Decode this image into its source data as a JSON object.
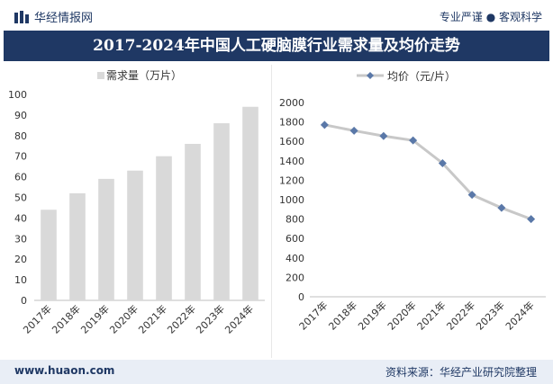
{
  "header": {
    "brand": "华经情报网",
    "slogan": "专业严谨 ● 客观科学"
  },
  "title": "2017-2024年中国人工硬脑膜行业需求量及均价走势",
  "footer": {
    "website": "www.huaon.com",
    "source": "资料来源：华经产业研究院整理"
  },
  "colors": {
    "navy": "#1f3864",
    "bar": "#d9d9d9",
    "line": "#c8c8c8",
    "marker": "#5a78a8"
  },
  "chart_data": [
    {
      "type": "bar",
      "legend": "需求量（万片）",
      "categories": [
        "2017年",
        "2018年",
        "2019年",
        "2020年",
        "2021年",
        "2022年",
        "2023年",
        "2024年"
      ],
      "values": [
        44,
        52,
        59,
        63,
        70,
        76,
        86,
        94
      ],
      "ylim": [
        0,
        100
      ],
      "yticks": [
        0,
        10,
        20,
        30,
        40,
        50,
        60,
        70,
        80,
        90,
        100
      ],
      "legend_position": "top-left",
      "grid": false
    },
    {
      "type": "line",
      "legend": "均价（元/片）",
      "categories": [
        "2017年",
        "2018年",
        "2019年",
        "2020年",
        "2021年",
        "2022年",
        "2023年",
        "2024年"
      ],
      "values": [
        1770,
        1710,
        1655,
        1610,
        1375,
        1050,
        915,
        800
      ],
      "ylim": [
        0,
        2000
      ],
      "yticks": [
        0,
        200,
        400,
        600,
        800,
        1000,
        1200,
        1400,
        1600,
        1800,
        2000
      ],
      "legend_position": "top-center",
      "grid": false
    }
  ]
}
